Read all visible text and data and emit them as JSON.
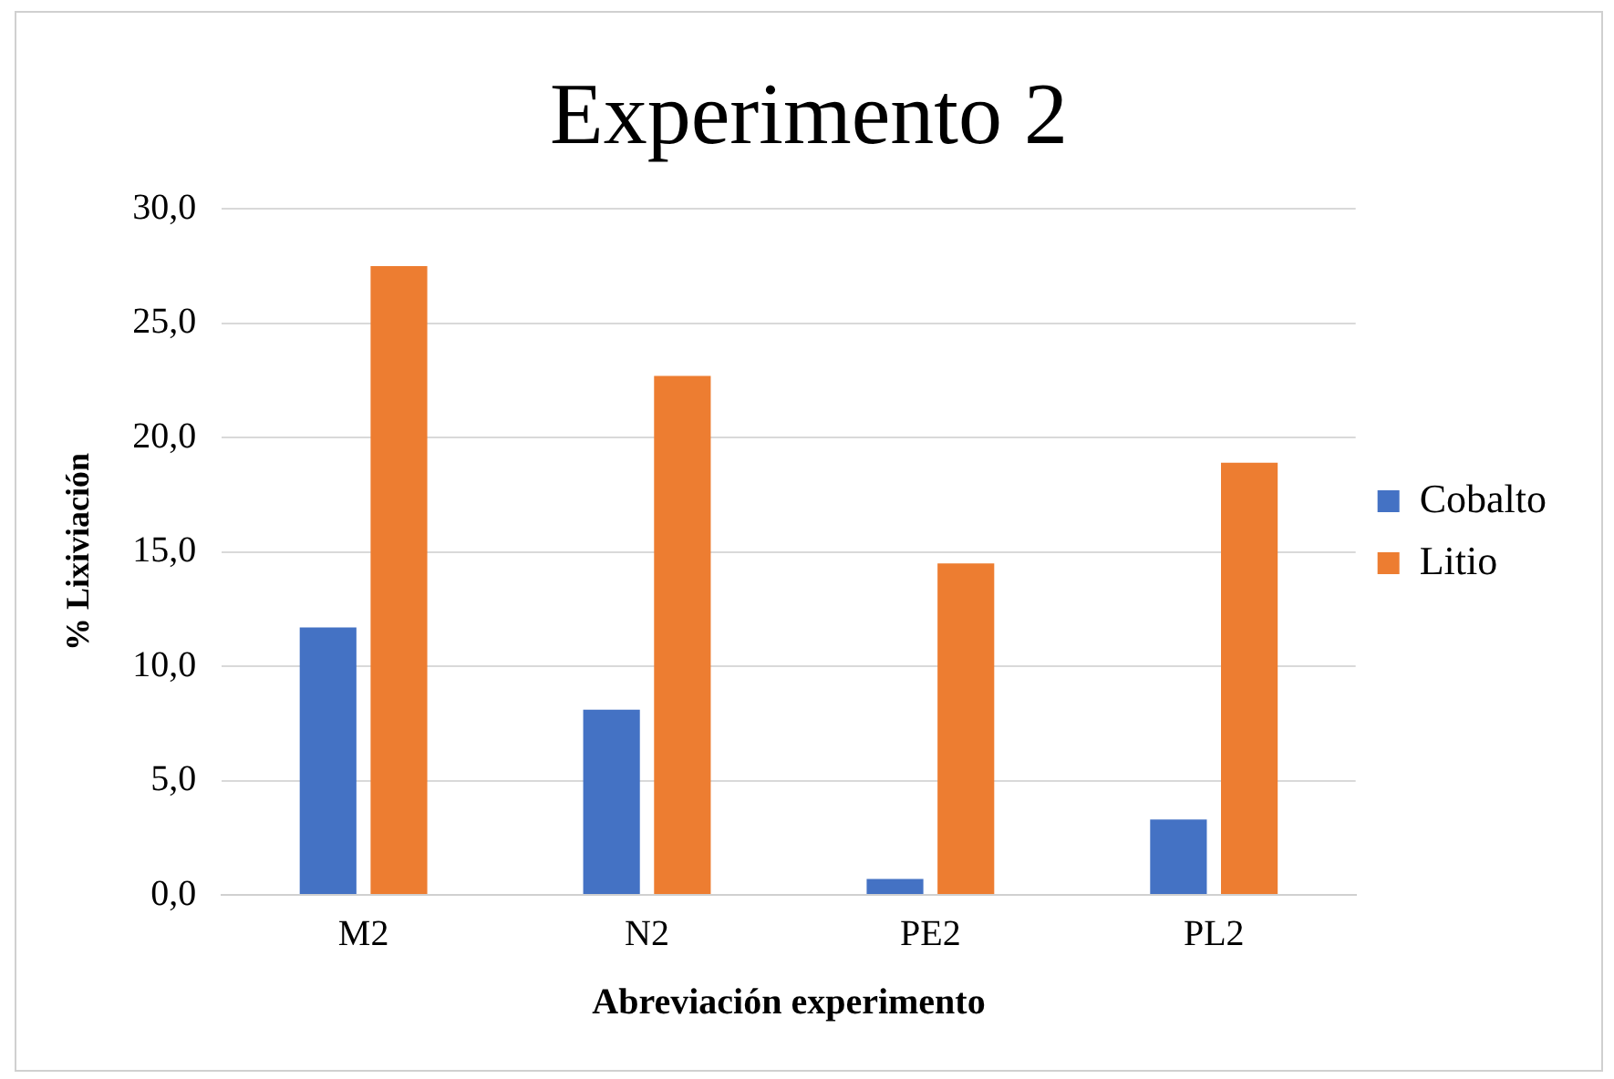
{
  "chart_data": {
    "type": "bar",
    "title": "Experimento 2",
    "xlabel": "Abreviación experimento",
    "ylabel": "% Lixiviación",
    "categories": [
      "M2",
      "N2",
      "PE2",
      "PL2"
    ],
    "series": [
      {
        "name": "Cobalto",
        "color": "#4472c4",
        "values": [
          11.7,
          8.1,
          0.7,
          3.3
        ]
      },
      {
        "name": "Litio",
        "color": "#ed7d31",
        "values": [
          27.5,
          22.7,
          14.5,
          18.9
        ]
      }
    ],
    "ylim": [
      0,
      30
    ],
    "yticks": [
      {
        "value": 0,
        "label": "0,0"
      },
      {
        "value": 5,
        "label": "5,0"
      },
      {
        "value": 10,
        "label": "10,0"
      },
      {
        "value": 15,
        "label": "15,0"
      },
      {
        "value": 20,
        "label": "20,0"
      },
      {
        "value": 25,
        "label": "25,0"
      },
      {
        "value": 30,
        "label": "30,0"
      }
    ],
    "grid": "y",
    "legend": "right"
  }
}
